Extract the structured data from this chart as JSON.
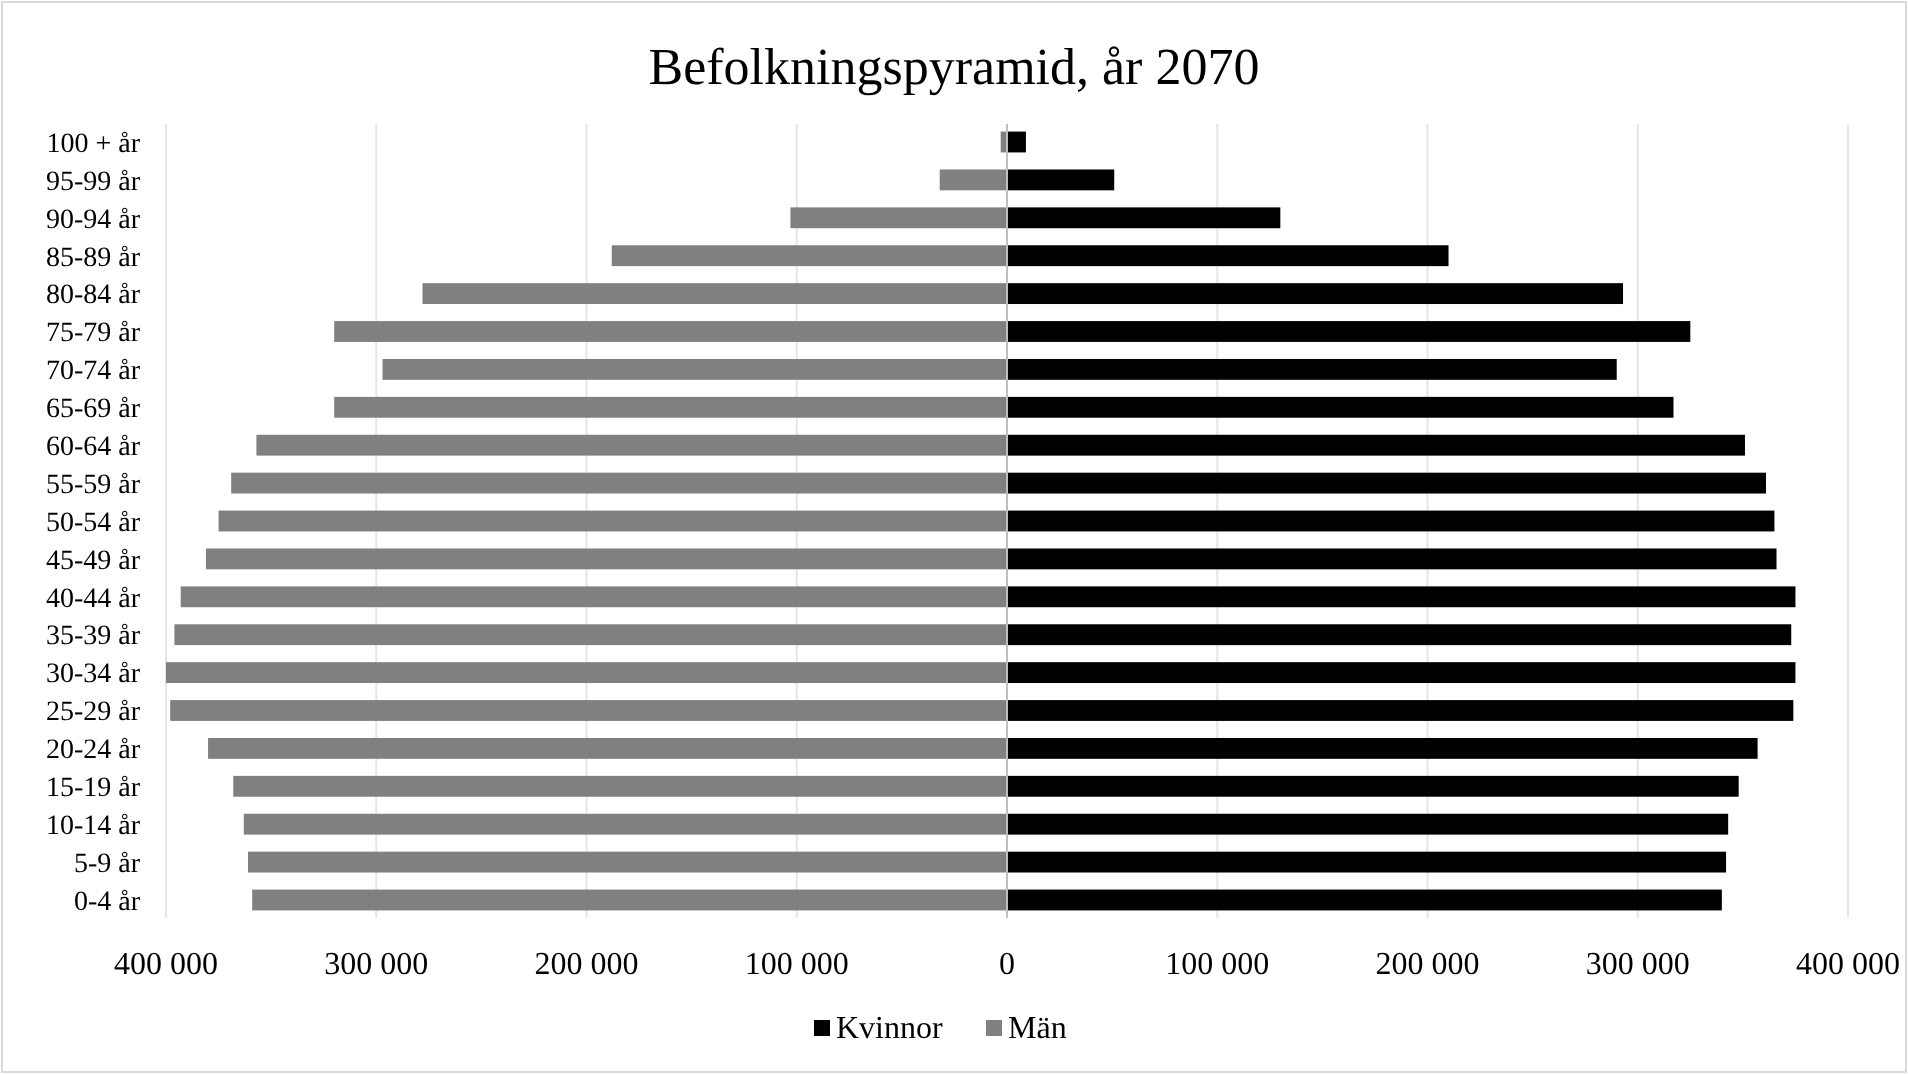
{
  "chart_data": {
    "type": "bar",
    "orientation": "horizontal",
    "stacked": true,
    "title": "Befolkningspyramid, år 2070",
    "categories": [
      "100 + år",
      "95-99 år",
      "90-94 år",
      "85-89 år",
      "80-84 år",
      "75-79 år",
      "70-74 år",
      "65-69 år",
      "60-64 år",
      "55-59 år",
      "50-54 år",
      "45-49 år",
      "40-44 år",
      "35-39 år",
      "30-34 år",
      "25-29 år",
      "20-24 år",
      "15-19 år",
      "10-14 år",
      "5-9 år",
      "0-4 år"
    ],
    "series": [
      {
        "name": "Kvinnor",
        "color": "#000000",
        "values": [
          9000,
          51000,
          130000,
          210000,
          293000,
          325000,
          290000,
          317000,
          351000,
          361000,
          365000,
          366000,
          375000,
          373000,
          375000,
          374000,
          357000,
          348000,
          343000,
          342000,
          340000
        ]
      },
      {
        "name": "Män",
        "color": "#808080",
        "values": [
          -3000,
          -32000,
          -103000,
          -188000,
          -278000,
          -320000,
          -297000,
          -320000,
          -357000,
          -369000,
          -375000,
          -381000,
          -393000,
          -396000,
          -400000,
          -398000,
          -380000,
          -368000,
          -363000,
          -361000,
          -359000
        ]
      }
    ],
    "xlim": [
      -400000,
      400000
    ],
    "xticks": [
      {
        "value": -400000,
        "label": "400 000"
      },
      {
        "value": -300000,
        "label": "300 000"
      },
      {
        "value": -200000,
        "label": "200 000"
      },
      {
        "value": -100000,
        "label": "100 000"
      },
      0,
      {
        "value": 100000,
        "label": "100 000"
      },
      {
        "value": 200000,
        "label": "200 000"
      },
      {
        "value": 300000,
        "label": "300 000"
      },
      {
        "value": 400000,
        "label": "400 000"
      }
    ],
    "grid": "x",
    "legend": "bottom"
  }
}
